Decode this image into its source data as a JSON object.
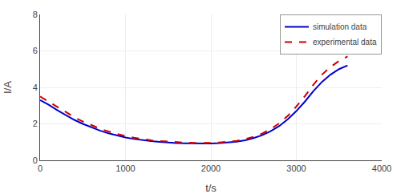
{
  "chart_data": {
    "type": "line",
    "xlabel": "t/s",
    "ylabel": "I/A",
    "x": [
      0,
      100,
      200,
      300,
      400,
      500,
      600,
      700,
      800,
      900,
      1000,
      1100,
      1200,
      1300,
      1400,
      1500,
      1600,
      1700,
      1800,
      1900,
      2000,
      2100,
      2200,
      2300,
      2400,
      2500,
      2600,
      2700,
      2800,
      2900,
      3000,
      3100,
      3200,
      3300,
      3400,
      3500,
      3600
    ],
    "series": [
      {
        "name": "simulation data",
        "color": "#0000cc",
        "line_style": "solid",
        "values": [
          3.3,
          3.05,
          2.75,
          2.48,
          2.22,
          2.0,
          1.8,
          1.63,
          1.48,
          1.35,
          1.25,
          1.17,
          1.1,
          1.05,
          1.01,
          0.97,
          0.94,
          0.93,
          0.92,
          0.91,
          0.92,
          0.94,
          0.97,
          1.02,
          1.1,
          1.22,
          1.38,
          1.6,
          1.88,
          2.25,
          2.7,
          3.22,
          3.8,
          4.3,
          4.7,
          5.0,
          5.2
        ]
      },
      {
        "name": "experimental data",
        "color": "#cc0000",
        "line_style": "dashed",
        "values": [
          3.5,
          3.22,
          2.92,
          2.63,
          2.37,
          2.13,
          1.92,
          1.74,
          1.58,
          1.44,
          1.33,
          1.24,
          1.16,
          1.1,
          1.06,
          1.02,
          0.99,
          0.97,
          0.96,
          0.95,
          0.96,
          0.98,
          1.02,
          1.07,
          1.16,
          1.29,
          1.47,
          1.72,
          2.03,
          2.44,
          2.95,
          3.52,
          4.15,
          4.7,
          5.12,
          5.45,
          5.7
        ]
      }
    ],
    "xlim": [
      0,
      4000
    ],
    "ylim": [
      0,
      8
    ],
    "xticks": [
      0,
      1000,
      2000,
      3000,
      4000
    ],
    "yticks": [
      0,
      2,
      4,
      6,
      8
    ],
    "grid": true,
    "legend": "upper right"
  }
}
